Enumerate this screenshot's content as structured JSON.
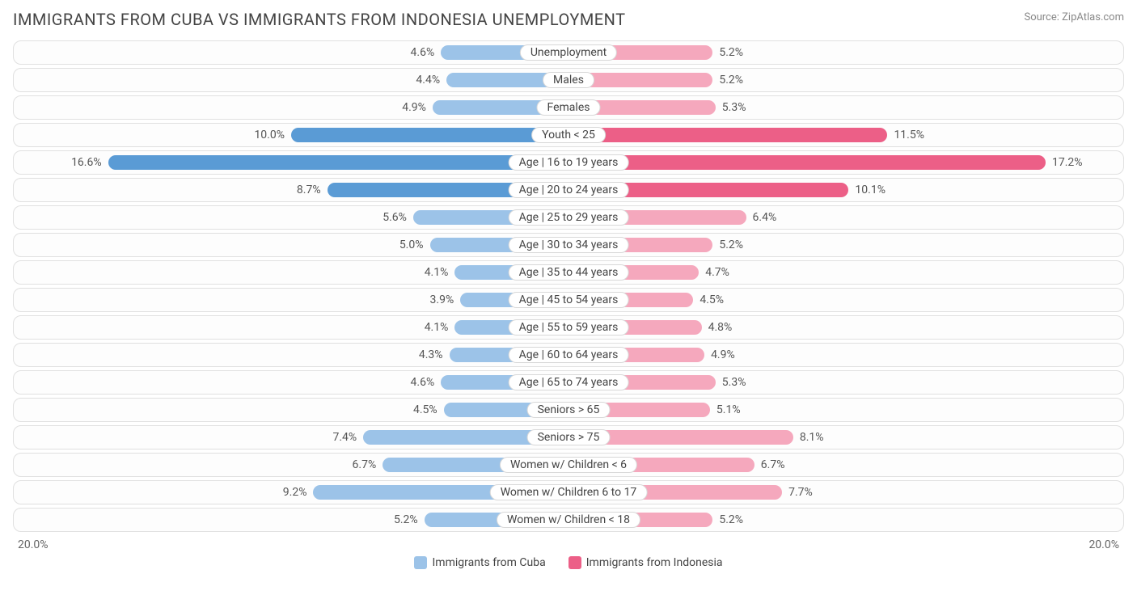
{
  "title": "IMMIGRANTS FROM CUBA VS IMMIGRANTS FROM INDONESIA UNEMPLOYMENT",
  "source": "Source: ZipAtlas.com",
  "chart": {
    "type": "diverging-bar",
    "axis_max_percent": 20.0,
    "axis_left_label": "20.0%",
    "axis_right_label": "20.0%",
    "background_color": "#ffffff",
    "row_border_color": "#e0e0e0",
    "left": {
      "label": "Immigrants from Cuba",
      "color_light": "#9cc3e8",
      "color_dark": "#5a9bd5"
    },
    "right": {
      "label": "Immigrants from Indonesia",
      "color_light": "#f5a8bd",
      "color_dark": "#ec5f87"
    },
    "rows": [
      {
        "category": "Unemployment",
        "left_val": 4.6,
        "right_val": 5.2,
        "highlight": false
      },
      {
        "category": "Males",
        "left_val": 4.4,
        "right_val": 5.2,
        "highlight": false
      },
      {
        "category": "Females",
        "left_val": 4.9,
        "right_val": 5.3,
        "highlight": false
      },
      {
        "category": "Youth < 25",
        "left_val": 10.0,
        "right_val": 11.5,
        "highlight": true
      },
      {
        "category": "Age | 16 to 19 years",
        "left_val": 16.6,
        "right_val": 17.2,
        "highlight": true
      },
      {
        "category": "Age | 20 to 24 years",
        "left_val": 8.7,
        "right_val": 10.1,
        "highlight": true
      },
      {
        "category": "Age | 25 to 29 years",
        "left_val": 5.6,
        "right_val": 6.4,
        "highlight": false
      },
      {
        "category": "Age | 30 to 34 years",
        "left_val": 5.0,
        "right_val": 5.2,
        "highlight": false
      },
      {
        "category": "Age | 35 to 44 years",
        "left_val": 4.1,
        "right_val": 4.7,
        "highlight": false
      },
      {
        "category": "Age | 45 to 54 years",
        "left_val": 3.9,
        "right_val": 4.5,
        "highlight": false
      },
      {
        "category": "Age | 55 to 59 years",
        "left_val": 4.1,
        "right_val": 4.8,
        "highlight": false
      },
      {
        "category": "Age | 60 to 64 years",
        "left_val": 4.3,
        "right_val": 4.9,
        "highlight": false
      },
      {
        "category": "Age | 65 to 74 years",
        "left_val": 4.6,
        "right_val": 5.3,
        "highlight": false
      },
      {
        "category": "Seniors > 65",
        "left_val": 4.5,
        "right_val": 5.1,
        "highlight": false
      },
      {
        "category": "Seniors > 75",
        "left_val": 7.4,
        "right_val": 8.1,
        "highlight": false
      },
      {
        "category": "Women w/ Children < 6",
        "left_val": 6.7,
        "right_val": 6.7,
        "highlight": false
      },
      {
        "category": "Women w/ Children 6 to 17",
        "left_val": 9.2,
        "right_val": 7.7,
        "highlight": false
      },
      {
        "category": "Women w/ Children < 18",
        "left_val": 5.2,
        "right_val": 5.2,
        "highlight": false
      }
    ]
  }
}
